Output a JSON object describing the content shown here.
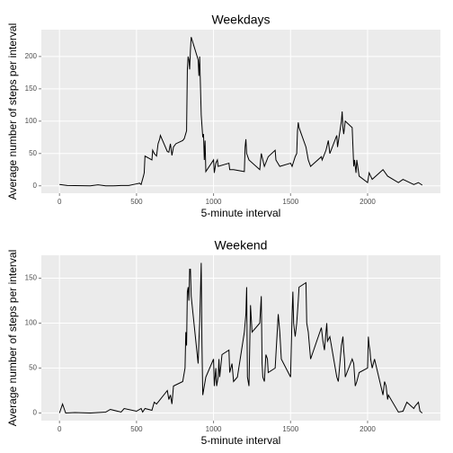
{
  "chart_data": [
    {
      "type": "line",
      "title": "Weekdays",
      "xlabel": "5-minute interval",
      "ylabel": "Average number of steps per interval",
      "x": [
        0,
        50,
        100,
        150,
        200,
        250,
        300,
        350,
        400,
        450,
        500,
        520,
        530,
        545,
        550,
        555,
        600,
        605,
        615,
        630,
        640,
        650,
        655,
        700,
        710,
        720,
        730,
        740,
        755,
        800,
        810,
        825,
        830,
        835,
        840,
        845,
        850,
        855,
        900,
        905,
        910,
        915,
        920,
        930,
        935,
        940,
        945,
        950,
        1000,
        1005,
        1015,
        1025,
        1030,
        1100,
        1105,
        1130,
        1200,
        1205,
        1210,
        1215,
        1230,
        1300,
        1310,
        1330,
        1355,
        1400,
        1405,
        1430,
        1500,
        1510,
        1530,
        1540,
        1545,
        1550,
        1555,
        1600,
        1615,
        1630,
        1700,
        1705,
        1730,
        1745,
        1755,
        1800,
        1805,
        1830,
        1835,
        1840,
        1845,
        1855,
        1900,
        1910,
        1915,
        1925,
        1930,
        1945,
        2000,
        2010,
        2030,
        2100,
        2130,
        2200,
        2230,
        2300,
        2330,
        2355
      ],
      "values": [
        2,
        0.5,
        0.3,
        0.2,
        0,
        1.5,
        0,
        0,
        0.5,
        0.5,
        3,
        4,
        2,
        15,
        20,
        46,
        40,
        55,
        50,
        46,
        65,
        72,
        78,
        53,
        52,
        65,
        47,
        60,
        65,
        70,
        73,
        85,
        180,
        200,
        195,
        180,
        210,
        230,
        195,
        170,
        200,
        155,
        110,
        75,
        80,
        40,
        70,
        22,
        40,
        20,
        35,
        40,
        30,
        35,
        25,
        25,
        22,
        60,
        72,
        50,
        40,
        25,
        50,
        30,
        45,
        55,
        40,
        30,
        35,
        30,
        45,
        50,
        85,
        98,
        90,
        60,
        40,
        30,
        45,
        40,
        55,
        70,
        50,
        78,
        60,
        100,
        115,
        90,
        80,
        100,
        90,
        30,
        40,
        20,
        40,
        15,
        5,
        20,
        10,
        25,
        15,
        5,
        10,
        2,
        5,
        1
      ],
      "color": "#000000",
      "xlim": [
        -117.75,
        2472.75
      ],
      "xticks": [
        0,
        500,
        1000,
        1500,
        2000
      ],
      "ylim": [
        -11.5,
        241.5
      ],
      "yticks": [
        0,
        50,
        100,
        150,
        200
      ],
      "grid": true
    },
    {
      "type": "line",
      "title": "Weekend",
      "xlabel": "5-minute interval",
      "ylabel": "Average number of steps per interval",
      "x": [
        0,
        20,
        40,
        100,
        200,
        300,
        330,
        400,
        420,
        500,
        530,
        540,
        555,
        600,
        615,
        630,
        700,
        710,
        720,
        730,
        740,
        800,
        815,
        820,
        825,
        830,
        835,
        840,
        845,
        850,
        855,
        900,
        905,
        910,
        920,
        925,
        930,
        940,
        950,
        1000,
        1005,
        1010,
        1015,
        1020,
        1030,
        1035,
        1040,
        1055,
        1100,
        1105,
        1120,
        1130,
        1155,
        1200,
        1210,
        1215,
        1220,
        1230,
        1240,
        1250,
        1300,
        1305,
        1310,
        1315,
        1320,
        1330,
        1340,
        1350,
        1355,
        1400,
        1420,
        1430,
        1440,
        1500,
        1510,
        1515,
        1520,
        1530,
        1540,
        1550,
        1555,
        1600,
        1605,
        1615,
        1630,
        1700,
        1710,
        1720,
        1730,
        1735,
        1740,
        1755,
        1800,
        1810,
        1830,
        1840,
        1845,
        1850,
        1855,
        1900,
        1910,
        1920,
        1930,
        1945,
        2000,
        2005,
        2010,
        2015,
        2020,
        2030,
        2045,
        2100,
        2110,
        2120,
        2130,
        2135,
        2200,
        2230,
        2255,
        2300,
        2310,
        2330,
        2340,
        2355
      ],
      "values": [
        0,
        10,
        0,
        0.5,
        0,
        1,
        4,
        1,
        5,
        2,
        5,
        1,
        5,
        3,
        12,
        10,
        25,
        15,
        20,
        10,
        30,
        35,
        50,
        90,
        75,
        135,
        140,
        125,
        160,
        160,
        130,
        55,
        80,
        100,
        167,
        75,
        20,
        30,
        40,
        60,
        30,
        40,
        50,
        30,
        40,
        60,
        40,
        65,
        70,
        45,
        55,
        35,
        40,
        90,
        110,
        140,
        40,
        30,
        120,
        90,
        100,
        115,
        130,
        55,
        40,
        35,
        65,
        60,
        45,
        50,
        110,
        90,
        60,
        40,
        110,
        135,
        100,
        85,
        100,
        125,
        140,
        145,
        100,
        90,
        60,
        95,
        80,
        70,
        90,
        100,
        80,
        85,
        40,
        35,
        75,
        85,
        70,
        60,
        40,
        60,
        55,
        30,
        35,
        45,
        50,
        85,
        75,
        70,
        60,
        50,
        60,
        20,
        35,
        30,
        15,
        20,
        1,
        2,
        12,
        5,
        8,
        12,
        2,
        0
      ],
      "color": "#000000",
      "xlim": [
        -117.75,
        2472.75
      ],
      "xticks": [
        0,
        500,
        1000,
        1500,
        2000
      ],
      "ylim": [
        -8.5,
        175.5
      ],
      "yticks": [
        0,
        50,
        100,
        150
      ],
      "grid": true
    }
  ]
}
